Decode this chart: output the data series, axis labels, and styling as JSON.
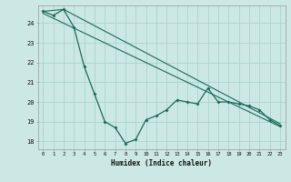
{
  "title": "",
  "xlabel": "Humidex (Indice chaleur)",
  "bg_color": "#cce8e4",
  "grid_color": "#aad4cf",
  "line_color": "#1a6b5a",
  "xlim": [
    -0.5,
    23.5
  ],
  "ylim": [
    17.6,
    24.9
  ],
  "yticks": [
    18,
    19,
    20,
    21,
    22,
    23,
    24
  ],
  "xticks": [
    0,
    1,
    2,
    3,
    4,
    5,
    6,
    7,
    8,
    9,
    10,
    11,
    12,
    13,
    14,
    15,
    16,
    17,
    18,
    19,
    20,
    21,
    22,
    23
  ],
  "series1_x": [
    0,
    1,
    2,
    3,
    4,
    5,
    6,
    7,
    8,
    9,
    10,
    11,
    12,
    13,
    14,
    15,
    16,
    17,
    18,
    19,
    20,
    21,
    22,
    23
  ],
  "series1_y": [
    24.6,
    24.4,
    24.7,
    23.8,
    21.8,
    20.4,
    19.0,
    18.7,
    17.9,
    18.1,
    19.1,
    19.3,
    19.6,
    20.1,
    20.0,
    19.9,
    20.7,
    20.0,
    20.0,
    19.9,
    19.8,
    19.6,
    19.1,
    18.8
  ],
  "trend1_x": [
    0,
    2,
    23
  ],
  "trend1_y": [
    24.6,
    24.7,
    18.9
  ],
  "trend2_x": [
    0,
    23
  ],
  "trend2_y": [
    24.5,
    18.75
  ]
}
